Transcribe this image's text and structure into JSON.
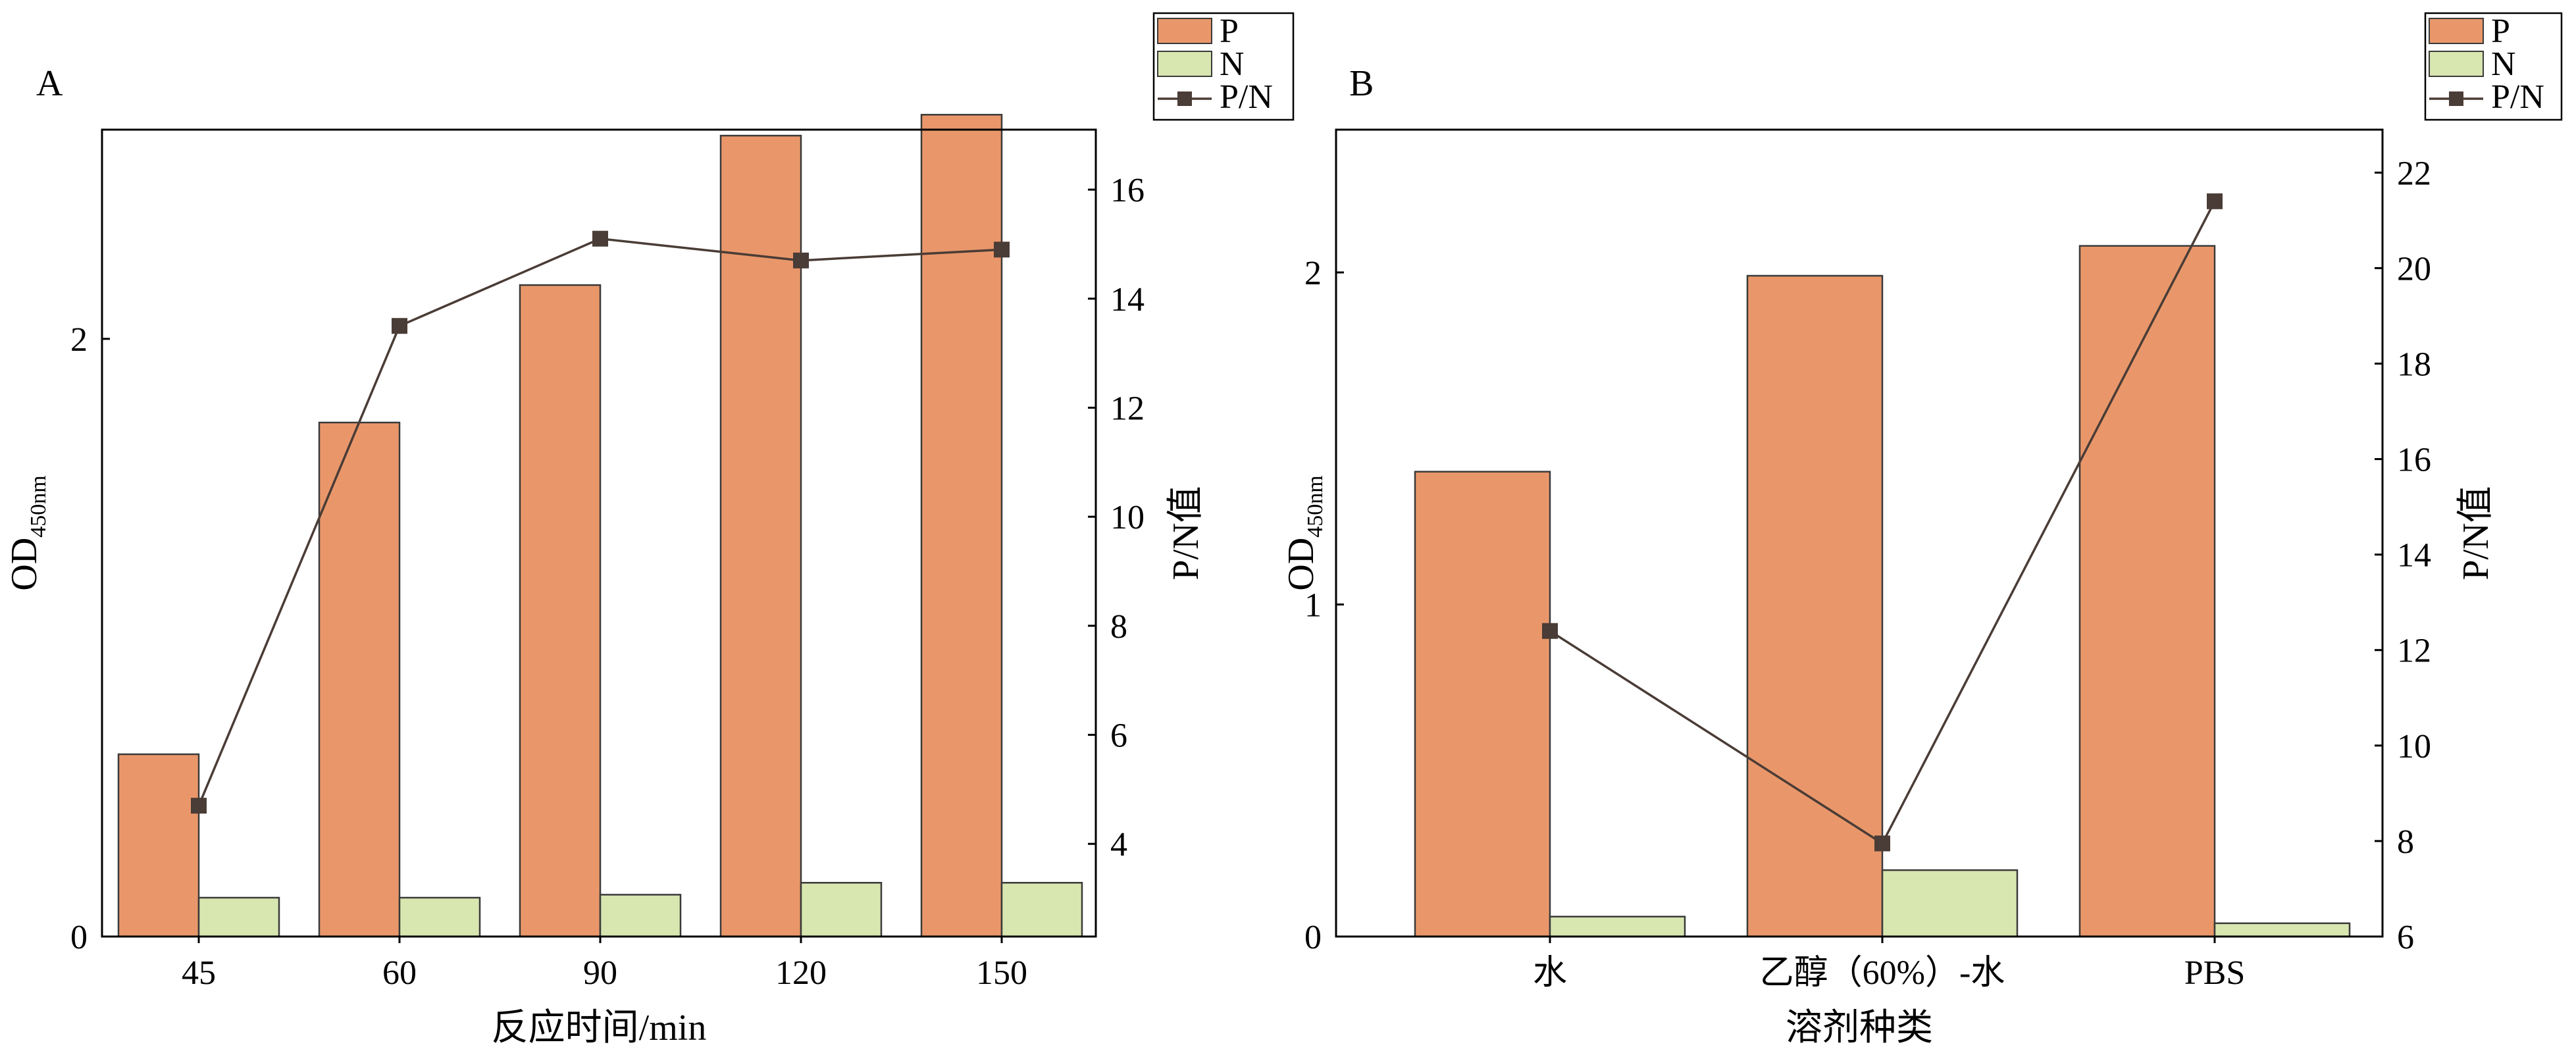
{
  "chart_data": [
    {
      "panel": "A",
      "type": "bar",
      "categories": [
        "45",
        "60",
        "90",
        "120",
        "150"
      ],
      "xlabel": "反应时间/min",
      "ylabel": "OD",
      "ylabel_sub": "450nm",
      "y2label": "P/N值",
      "ylim": [
        0,
        2.7
      ],
      "y2lim": [
        2.3,
        17.1
      ],
      "yticks": [
        "0",
        "2"
      ],
      "yticks_values": [
        0,
        2
      ],
      "y2ticks": [
        "4",
        "6",
        "8",
        "10",
        "12",
        "14",
        "16"
      ],
      "y2ticks_values": [
        4,
        6,
        8,
        10,
        12,
        14,
        16
      ],
      "series": [
        {
          "name": "P",
          "kind": "bar",
          "axis": "left",
          "color": "#E9976A",
          "values": [
            0.61,
            1.72,
            2.18,
            2.68,
            2.75
          ]
        },
        {
          "name": "N",
          "kind": "bar",
          "axis": "left",
          "color": "#D8E6B0",
          "values": [
            0.13,
            0.13,
            0.14,
            0.18,
            0.18
          ]
        },
        {
          "name": "P/N",
          "kind": "line",
          "axis": "right",
          "color": "#4A3C36",
          "values": [
            4.7,
            13.5,
            15.1,
            14.7,
            14.9
          ]
        }
      ],
      "legend": "top-right, outside plot"
    },
    {
      "panel": "B",
      "type": "bar",
      "categories": [
        "水",
        "乙醇（60%）-水",
        "PBS"
      ],
      "xlabel": "溶剂种类",
      "ylabel": "OD",
      "ylabel_sub": "450nm",
      "y2label": "P/N值",
      "ylim": [
        0,
        2.43
      ],
      "y2lim": [
        6,
        22.9
      ],
      "yticks": [
        "0",
        "1",
        "2"
      ],
      "yticks_values": [
        0,
        1,
        2
      ],
      "y2ticks": [
        "6",
        "8",
        "10",
        "12",
        "14",
        "16",
        "18",
        "20",
        "22"
      ],
      "y2ticks_values": [
        6,
        8,
        10,
        12,
        14,
        16,
        18,
        20,
        22
      ],
      "series": [
        {
          "name": "P",
          "kind": "bar",
          "axis": "left",
          "color": "#E9976A",
          "values": [
            1.4,
            1.99,
            2.08
          ]
        },
        {
          "name": "N",
          "kind": "bar",
          "axis": "left",
          "color": "#D8E6B0",
          "values": [
            0.06,
            0.2,
            0.04
          ]
        },
        {
          "name": "P/N",
          "kind": "line",
          "axis": "right",
          "color": "#4A3C36",
          "values": [
            12.4,
            7.95,
            21.4
          ]
        }
      ],
      "legend": "top-right, outside plot"
    }
  ]
}
